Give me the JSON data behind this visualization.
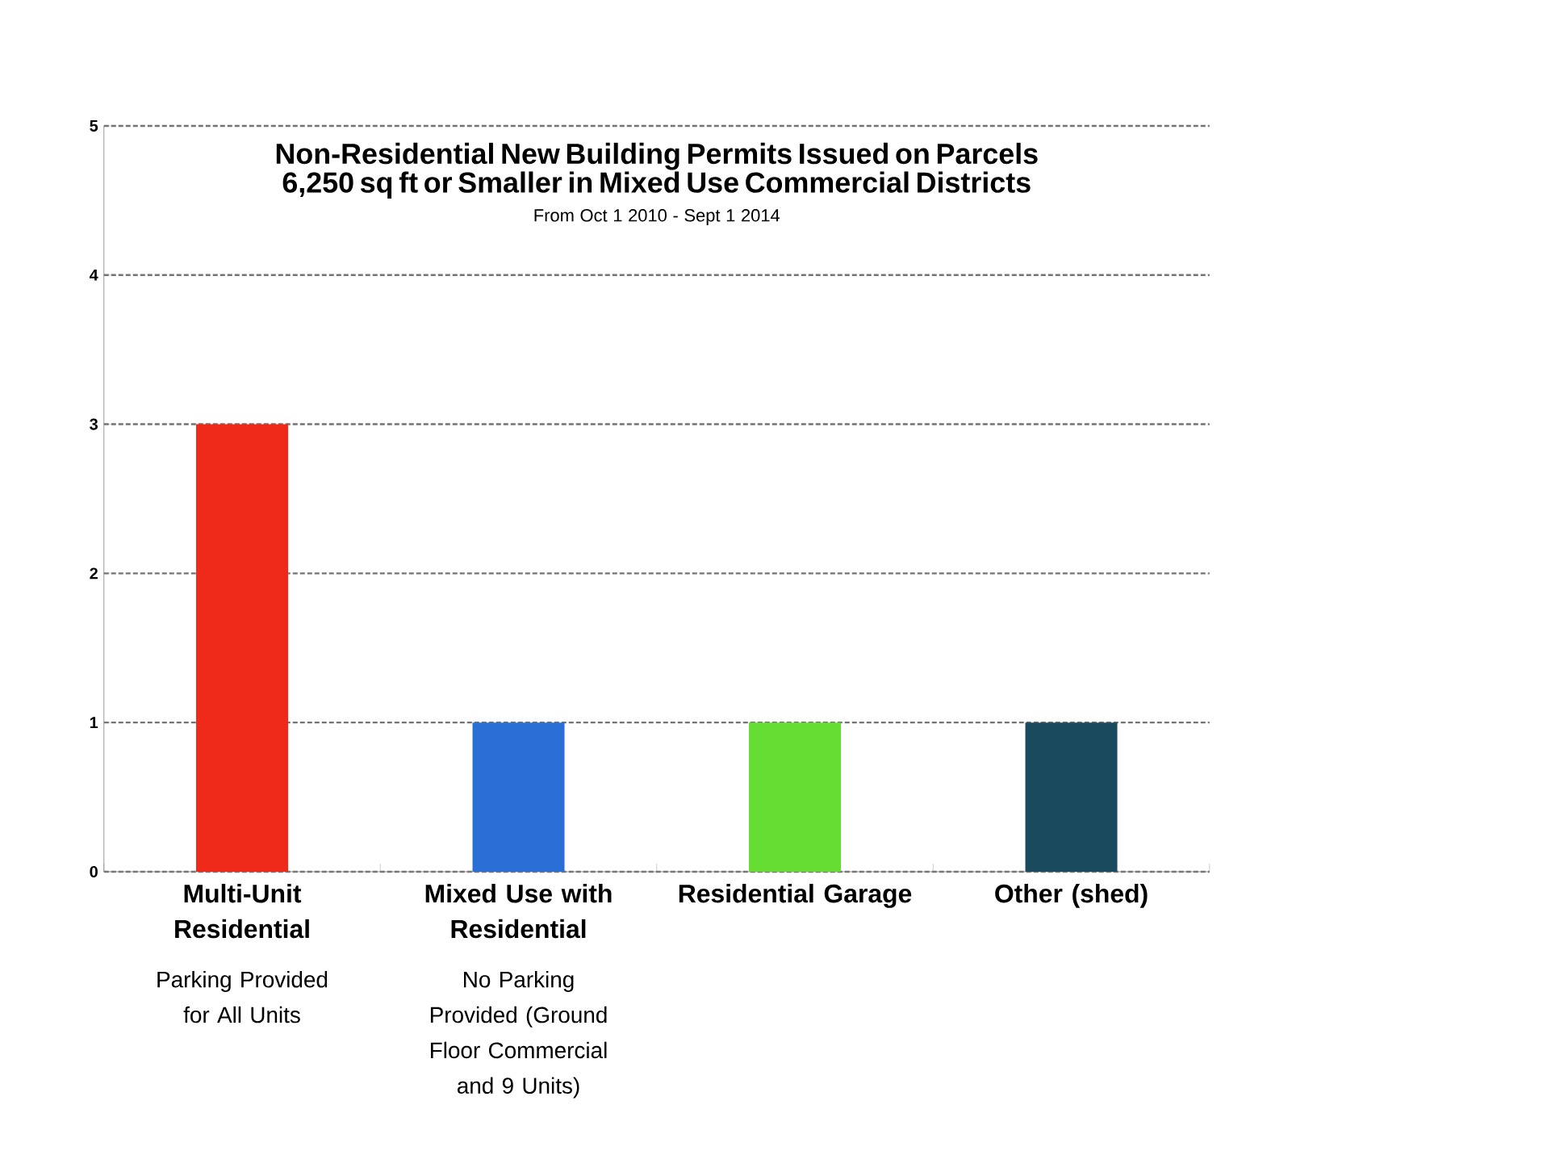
{
  "chart_data": {
    "type": "bar",
    "title": "Non-Residential New Building Permits Issued on Parcels 6,250 sq ft or Smaller in Mixed Use Commercial Districts",
    "subtitle": "From Oct 1 2010 - Sept 1 2014",
    "categories": [
      "Multi-Unit Residential",
      "Mixed Use with Residential",
      "Residential Garage",
      "Other (shed)"
    ],
    "values": [
      3,
      1,
      1,
      1
    ],
    "colors": [
      "#f02a1a",
      "#2a6fd6",
      "#66dd33",
      "#1a4a5e"
    ],
    "ylim": [
      0,
      5
    ],
    "yticks": [
      0,
      1,
      2,
      3,
      4,
      5
    ],
    "grid": "y",
    "annotations": [
      "Parking Provided for All Units",
      "No Parking Provided (Ground Floor Commercial and 9 Units)"
    ]
  }
}
